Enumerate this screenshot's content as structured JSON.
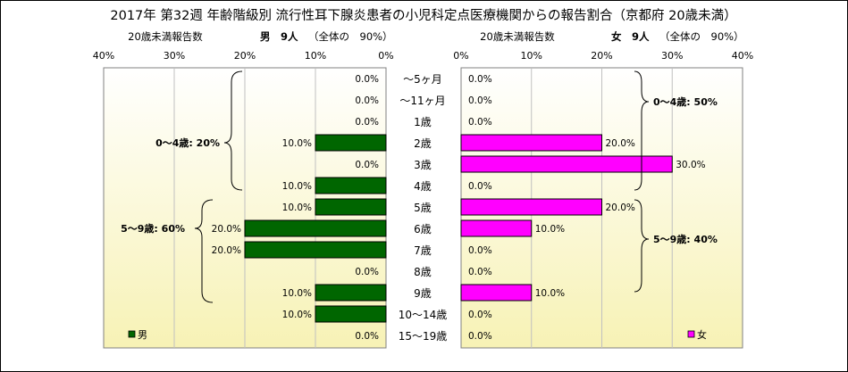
{
  "title": "2017年 第32週 年齢階級別 流行性耳下腺炎患者の小児科定点医療機関からの報告割合（京都府 20歳未満）",
  "male_panel": {
    "axis_caption": "20歳未満報告数",
    "header": "男　9人",
    "header_share": "（全体の　90%）",
    "legend_label": "男",
    "bracket_labels": [
      "0～4歳: 20%",
      "5～9歳: 60%"
    ]
  },
  "female_panel": {
    "axis_caption": "20歳未満報告数",
    "header": "女　9人",
    "header_share": "（全体の　90%）",
    "legend_label": "女",
    "bracket_labels": [
      "0～4歳: 50%",
      "5～9歳: 40%"
    ]
  },
  "colors": {
    "male": "#006600",
    "female": "#ff00ff",
    "plot_bg_top": "#ffffff",
    "plot_bg_bottom": "#f7f2b5",
    "grid": "#c0c0c0"
  },
  "chart_data": [
    {
      "type": "bar",
      "orientation": "horizontal",
      "direction": "right-to-left",
      "categories": [
        "～5ヶ月",
        "～11ヶ月",
        "1歳",
        "2歳",
        "3歳",
        "4歳",
        "5歳",
        "6歳",
        "7歳",
        "8歳",
        "9歳",
        "10～14歳",
        "15～19歳"
      ],
      "series": [
        {
          "name": "男",
          "values": [
            0.0,
            0.0,
            0.0,
            10.0,
            0.0,
            10.0,
            10.0,
            20.0,
            20.0,
            0.0,
            10.0,
            10.0,
            0.0
          ]
        }
      ],
      "data_labels": [
        "0.0%",
        "0.0%",
        "0.0%",
        "10.0%",
        "0.0%",
        "10.0%",
        "10.0%",
        "20.0%",
        "20.0%",
        "0.0%",
        "10.0%",
        "10.0%",
        "0.0%"
      ],
      "xlim": [
        0,
        40
      ],
      "ticks": [
        "40%",
        "30%",
        "20%",
        "10%",
        "0%"
      ],
      "grid": true,
      "legend": "bottom-left"
    },
    {
      "type": "bar",
      "orientation": "horizontal",
      "direction": "left-to-right",
      "categories": [
        "～5ヶ月",
        "～11ヶ月",
        "1歳",
        "2歳",
        "3歳",
        "4歳",
        "5歳",
        "6歳",
        "7歳",
        "8歳",
        "9歳",
        "10～14歳",
        "15～19歳"
      ],
      "series": [
        {
          "name": "女",
          "values": [
            0.0,
            0.0,
            0.0,
            20.0,
            30.0,
            0.0,
            20.0,
            10.0,
            0.0,
            0.0,
            10.0,
            0.0,
            0.0
          ]
        }
      ],
      "data_labels": [
        "0.0%",
        "0.0%",
        "0.0%",
        "20.0%",
        "30.0%",
        "0.0%",
        "20.0%",
        "10.0%",
        "0.0%",
        "0.0%",
        "10.0%",
        "0.0%",
        "0.0%"
      ],
      "xlim": [
        0,
        40
      ],
      "ticks": [
        "0%",
        "10%",
        "20%",
        "30%",
        "40%"
      ],
      "grid": true,
      "legend": "bottom-right"
    }
  ]
}
